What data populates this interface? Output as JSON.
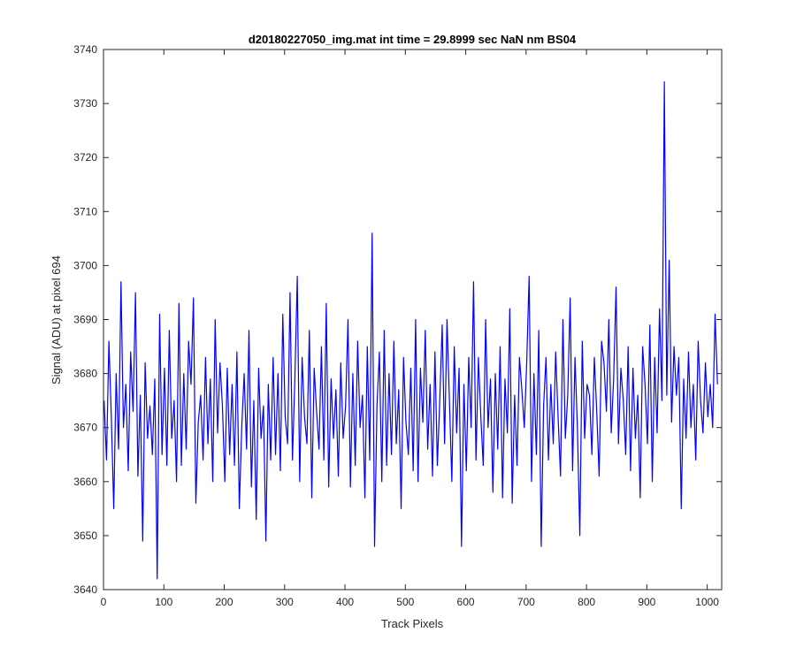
{
  "chart_data": {
    "type": "line",
    "title": "d20180227050_img.mat int time = 29.8999 sec  NaN nm BS04",
    "xlabel": "Track Pixels",
    "ylabel": "Signal (ADU) at pixel 694",
    "xlim": [
      0,
      1024
    ],
    "ylim": [
      3640,
      3740
    ],
    "xticks": [
      "0",
      "100",
      "200",
      "300",
      "400",
      "500",
      "600",
      "700",
      "800",
      "900",
      "1000"
    ],
    "yticks": [
      "3640",
      "3650",
      "3660",
      "3670",
      "3680",
      "3690",
      "3700",
      "3710",
      "3720",
      "3730",
      "3740"
    ],
    "grid": false,
    "legend": "none",
    "series": [
      {
        "color": "#0000ff",
        "x_start": 1,
        "x_step": 4,
        "values": [
          3675,
          3664,
          3686,
          3672,
          3655,
          3680,
          3666,
          3697,
          3670,
          3678,
          3662,
          3684,
          3673,
          3695,
          3661,
          3676,
          3649,
          3682,
          3668,
          3674,
          3665,
          3679,
          3642,
          3691,
          3665,
          3681,
          3663,
          3688,
          3668,
          3675,
          3660,
          3693,
          3663,
          3680,
          3666,
          3686,
          3678,
          3694,
          3656,
          3671,
          3676,
          3664,
          3683,
          3667,
          3679,
          3660,
          3690,
          3669,
          3682,
          3674,
          3660,
          3681,
          3665,
          3678,
          3663,
          3684,
          3655,
          3670,
          3680,
          3666,
          3688,
          3659,
          3675,
          3653,
          3681,
          3668,
          3674,
          3649,
          3678,
          3664,
          3683,
          3665,
          3680,
          3662,
          3691,
          3672,
          3667,
          3695,
          3664,
          3679,
          3698,
          3660,
          3683,
          3672,
          3667,
          3688,
          3657,
          3681,
          3673,
          3666,
          3685,
          3664,
          3693,
          3659,
          3679,
          3668,
          3677,
          3661,
          3682,
          3668,
          3674,
          3690,
          3659,
          3680,
          3663,
          3686,
          3670,
          3676,
          3657,
          3685,
          3664,
          3706,
          3648,
          3674,
          3684,
          3660,
          3688,
          3663,
          3680,
          3665,
          3686,
          3667,
          3677,
          3655,
          3683,
          3671,
          3665,
          3681,
          3662,
          3690,
          3660,
          3681,
          3671,
          3688,
          3666,
          3678,
          3661,
          3684,
          3663,
          3675,
          3689,
          3667,
          3690,
          3675,
          3660,
          3685,
          3669,
          3681,
          3648,
          3678,
          3662,
          3683,
          3670,
          3697,
          3664,
          3683,
          3672,
          3663,
          3690,
          3670,
          3679,
          3658,
          3680,
          3666,
          3685,
          3657,
          3679,
          3669,
          3692,
          3656,
          3676,
          3663,
          3683,
          3677,
          3670,
          3682,
          3698,
          3660,
          3680,
          3665,
          3688,
          3648,
          3674,
          3683,
          3664,
          3678,
          3667,
          3684,
          3672,
          3661,
          3690,
          3668,
          3676,
          3694,
          3662,
          3683,
          3670,
          3650,
          3686,
          3668,
          3678,
          3676,
          3665,
          3683,
          3673,
          3661,
          3686,
          3682,
          3673,
          3690,
          3669,
          3679,
          3696,
          3667,
          3681,
          3675,
          3665,
          3685,
          3662,
          3681,
          3668,
          3676,
          3657,
          3685,
          3678,
          3667,
          3689,
          3660,
          3683,
          3669,
          3692,
          3675,
          3734,
          3676,
          3701,
          3671,
          3685,
          3676,
          3683,
          3655,
          3679,
          3668,
          3684,
          3670,
          3678,
          3664,
          3686,
          3675,
          3669,
          3682,
          3672,
          3678,
          3670,
          3691,
          3678
        ]
      }
    ]
  }
}
